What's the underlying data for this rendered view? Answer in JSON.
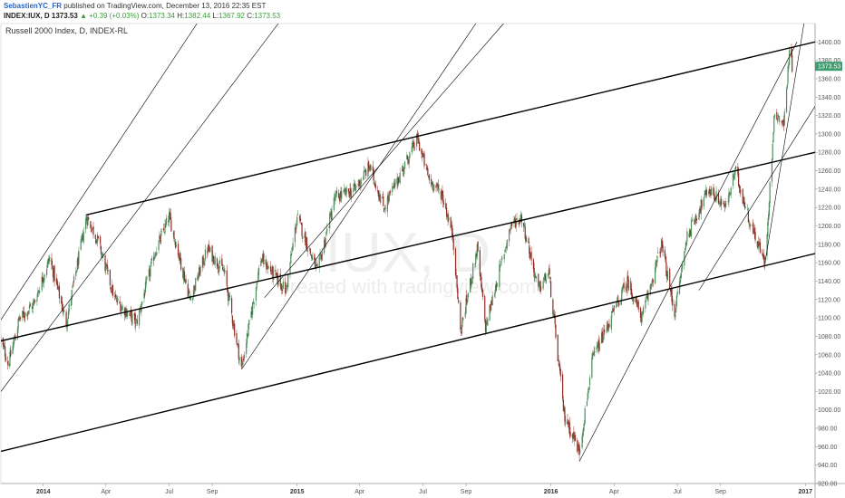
{
  "header": {
    "username": "SebastienYC_FR",
    "published_text": "published on TradingView.com, December 13, 2016 22:35 EST",
    "symbol": "INDEX:IUX, D",
    "last": "1373.53",
    "arrow": "▲",
    "change": "+0.39 (+0.03%)",
    "o_label": "O:",
    "o_value": "1373.34",
    "h_label": "H:",
    "h_value": "1382.44",
    "l_label": "L:",
    "l_value": "1367.92",
    "c_label": "C:",
    "c_value": "1373.53"
  },
  "colors": {
    "up": "#4c8c5a",
    "down": "#8b2e24",
    "price_tag": "#3c9d6e",
    "trendline": "#000000"
  },
  "chart_data": {
    "type": "candlestick",
    "title": "Russell 2000 Index, D, INDEX-RL",
    "watermark": "IUX, D",
    "watermark_sub": "created with tradingview.com",
    "current_price_label": "1373.53",
    "current_price": 1373.53,
    "ylim": [
      920,
      1420
    ],
    "y_ticks": [
      920,
      940,
      960,
      980,
      1000,
      1020,
      1040,
      1060,
      1080,
      1100,
      1120,
      1140,
      1160,
      1180,
      1200,
      1220,
      1240,
      1260,
      1280,
      1300,
      1320,
      1340,
      1360,
      1380,
      1400
    ],
    "xlim": [
      "2013-11-01",
      "2017-01-15"
    ],
    "x_ticks": [
      {
        "label": "2014",
        "date": "2014-01-01",
        "bold": true
      },
      {
        "label": "Apr",
        "date": "2014-04-01",
        "bold": false
      },
      {
        "label": "Jul",
        "date": "2014-07-01",
        "bold": false
      },
      {
        "label": "Sep",
        "date": "2014-09-01",
        "bold": false
      },
      {
        "label": "2015",
        "date": "2015-01-01",
        "bold": true
      },
      {
        "label": "Apr",
        "date": "2015-04-01",
        "bold": false
      },
      {
        "label": "Jul",
        "date": "2015-07-01",
        "bold": false
      },
      {
        "label": "Sep",
        "date": "2015-09-01",
        "bold": false
      },
      {
        "label": "2016",
        "date": "2016-01-01",
        "bold": true
      },
      {
        "label": "Apr",
        "date": "2016-04-01",
        "bold": false
      },
      {
        "label": "Jul",
        "date": "2016-07-01",
        "bold": false
      },
      {
        "label": "Sep",
        "date": "2016-09-01",
        "bold": false
      },
      {
        "label": "2017",
        "date": "2017-01-01",
        "bold": true
      }
    ],
    "close_path": [
      [
        "2013-11-01",
        1075
      ],
      [
        "2013-11-12",
        1050
      ],
      [
        "2013-11-27",
        1098
      ],
      [
        "2013-12-18",
        1115
      ],
      [
        "2014-01-10",
        1165
      ],
      [
        "2014-02-03",
        1095
      ],
      [
        "2014-03-04",
        1210
      ],
      [
        "2014-03-20",
        1185
      ],
      [
        "2014-04-14",
        1120
      ],
      [
        "2014-05-15",
        1095
      ],
      [
        "2014-06-10",
        1170
      ],
      [
        "2014-07-01",
        1210
      ],
      [
        "2014-07-31",
        1120
      ],
      [
        "2014-08-25",
        1175
      ],
      [
        "2014-09-18",
        1150
      ],
      [
        "2014-10-13",
        1045
      ],
      [
        "2014-11-10",
        1165
      ],
      [
        "2014-12-16",
        1130
      ],
      [
        "2015-01-01",
        1210
      ],
      [
        "2015-01-30",
        1150
      ],
      [
        "2015-02-24",
        1230
      ],
      [
        "2015-03-25",
        1240
      ],
      [
        "2015-04-15",
        1265
      ],
      [
        "2015-05-06",
        1220
      ],
      [
        "2015-06-23",
        1295
      ],
      [
        "2015-07-10",
        1250
      ],
      [
        "2015-07-28",
        1235
      ],
      [
        "2015-08-13",
        1190
      ],
      [
        "2015-08-24",
        1085
      ],
      [
        "2015-09-17",
        1175
      ],
      [
        "2015-09-29",
        1090
      ],
      [
        "2015-11-04",
        1200
      ],
      [
        "2015-11-20",
        1210
      ],
      [
        "2015-12-14",
        1130
      ],
      [
        "2015-12-29",
        1150
      ],
      [
        "2016-01-20",
        995
      ],
      [
        "2016-02-11",
        955
      ],
      [
        "2016-03-01",
        1055
      ],
      [
        "2016-04-20",
        1140
      ],
      [
        "2016-05-11",
        1100
      ],
      [
        "2016-06-08",
        1180
      ],
      [
        "2016-06-27",
        1105
      ],
      [
        "2016-07-15",
        1190
      ],
      [
        "2016-08-15",
        1240
      ],
      [
        "2016-09-09",
        1220
      ],
      [
        "2016-09-22",
        1260
      ],
      [
        "2016-10-13",
        1205
      ],
      [
        "2016-11-04",
        1160
      ],
      [
        "2016-11-18",
        1325
      ],
      [
        "2016-12-01",
        1310
      ],
      [
        "2016-12-09",
        1390
      ],
      [
        "2016-12-13",
        1373.53
      ]
    ],
    "trendlines": [
      {
        "name": "upper-channel",
        "from": [
          "2014-03-04",
          1212
        ],
        "to": [
          "2017-01-15",
          1400
        ]
      },
      {
        "name": "middle-channel",
        "from": [
          "2013-11-01",
          1075
        ],
        "to": [
          "2017-01-15",
          1280
        ]
      },
      {
        "name": "lower-channel",
        "from": [
          "2013-11-01",
          955
        ],
        "to": [
          "2017-01-15",
          1170
        ]
      }
    ],
    "thin_lines": [
      {
        "name": "fan-ray-1",
        "from": [
          "2013-11-01",
          1098
        ],
        "to": [
          "2014-08-10",
          1420
        ]
      },
      {
        "name": "fan-ray-2",
        "from": [
          "2013-11-01",
          1020
        ],
        "to": [
          "2014-12-05",
          1420
        ]
      },
      {
        "name": "fan-ray-3",
        "from": [
          "2014-10-13",
          1044
        ],
        "to": [
          "2015-09-15",
          1420
        ]
      },
      {
        "name": "fan-ray-4",
        "from": [
          "2014-11-15",
          1122
        ],
        "to": [
          "2015-10-25",
          1420
        ]
      },
      {
        "name": "fan-ray-5",
        "from": [
          "2016-02-11",
          944
        ],
        "to": [
          "2016-12-20",
          1400
        ]
      },
      {
        "name": "fan-ray-6",
        "from": [
          "2016-08-01",
          1130
        ],
        "to": [
          "2017-01-15",
          1330
        ]
      },
      {
        "name": "fan-ray-7",
        "from": [
          "2016-11-04",
          1160
        ],
        "to": [
          "2016-12-30",
          1420
        ]
      }
    ]
  }
}
